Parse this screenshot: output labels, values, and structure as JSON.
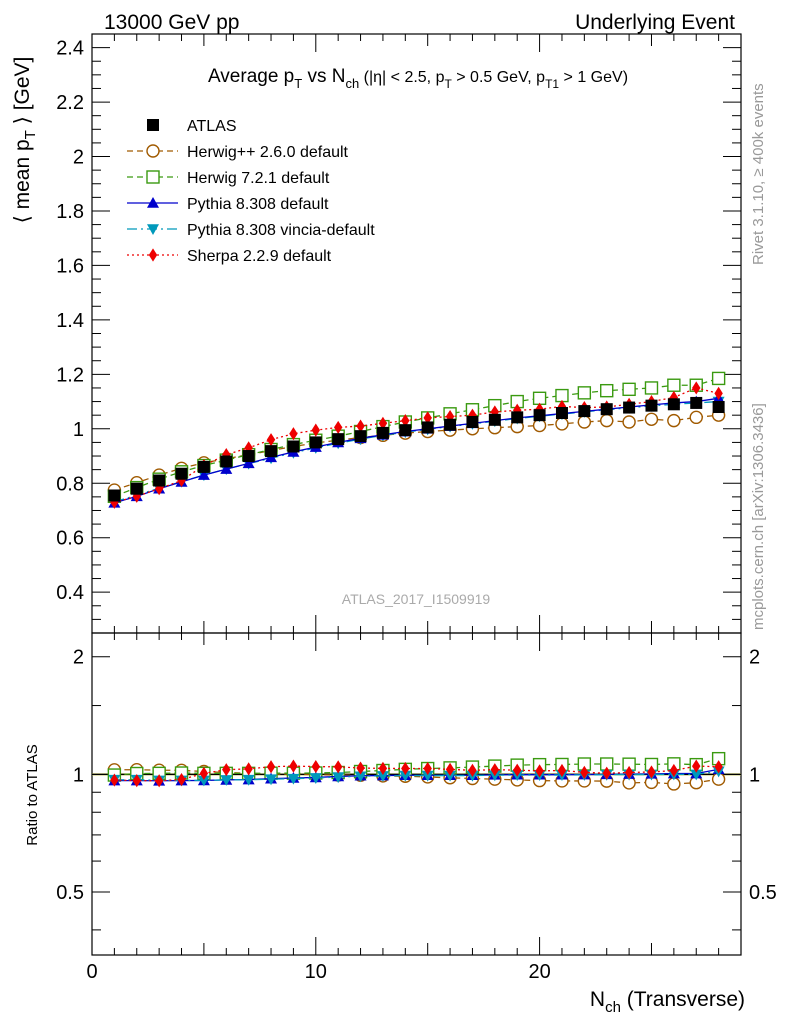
{
  "header": {
    "left": "13000 GeV pp",
    "right": "Underlying Event"
  },
  "side": {
    "rivet": "Rivet 3.1.10, ≥ 400k events",
    "mcplots": "mcplots.cern.ch [arXiv:1306.3436]"
  },
  "watermark": "ATLAS_2017_I1509919",
  "colors": {
    "atlas": "#000000",
    "herwigpp": "#a05a00",
    "herwig7": "#3a9a10",
    "pythia": "#0000cc",
    "vincia": "#0099bb",
    "sherpa": "#ee0000"
  },
  "chart_data": [
    {
      "type": "scatter",
      "title": "Average pT vs Nch (|η| < 2.5, pT > 0.5 GeV, pT1 > 1 GeV)",
      "title_parts": {
        "a": "Average p",
        "a_sub": "T",
        "b": " vs N",
        "b_sub": "ch",
        "c": " (|η| < 2.5, p",
        "c_sub": "T",
        "d": " > 0.5 GeV, p",
        "d_sub": "T1",
        "e": " > 1 GeV)"
      },
      "ylabel": "⟨ mean pT ⟩ [GeV]",
      "ylabel_parts": {
        "a": "⟨ mean p",
        "a_sub": "T",
        "b": " ⟩ [GeV]"
      },
      "xlim": [
        0,
        29
      ],
      "ylim": [
        0.25,
        2.45
      ],
      "y_ticks": [
        0.4,
        0.6,
        0.8,
        1,
        1.2,
        1.4,
        1.6,
        1.8,
        2,
        2.2,
        2.4
      ],
      "y_tick_labels": [
        "0.4",
        "0.6",
        "0.8",
        "1",
        "1.2",
        "1.4",
        "1.6",
        "1.8",
        "2",
        "2.2",
        "2.4"
      ],
      "legend_placement": "top-left",
      "x": [
        1,
        2,
        3,
        4,
        5,
        6,
        7,
        8,
        9,
        10,
        11,
        12,
        13,
        14,
        15,
        16,
        17,
        18,
        19,
        20,
        21,
        22,
        23,
        24,
        25,
        26,
        27,
        28
      ],
      "series": [
        {
          "name": "ATLAS",
          "marker": "square-filled",
          "color": "#000000",
          "values": [
            0.755,
            0.78,
            0.81,
            0.835,
            0.86,
            0.88,
            0.9,
            0.918,
            0.935,
            0.95,
            0.962,
            0.973,
            0.985,
            0.995,
            1.005,
            1.015,
            1.025,
            1.033,
            1.042,
            1.05,
            1.058,
            1.065,
            1.072,
            1.078,
            1.085,
            1.09,
            1.095,
            1.08
          ]
        },
        {
          "name": "Herwig++ 2.6.0 default",
          "marker": "circle-open",
          "color": "#a05a00",
          "values": [
            0.775,
            0.802,
            0.83,
            0.855,
            0.875,
            0.89,
            0.905,
            0.92,
            0.935,
            0.948,
            0.958,
            0.968,
            0.976,
            0.984,
            0.99,
            0.995,
            1.0,
            1.004,
            1.008,
            1.012,
            1.018,
            1.025,
            1.03,
            1.025,
            1.035,
            1.03,
            1.042,
            1.05
          ]
        },
        {
          "name": "Herwig 7.2.1 default",
          "marker": "square-open",
          "color": "#3a9a10",
          "values": [
            0.752,
            0.784,
            0.815,
            0.842,
            0.865,
            0.885,
            0.905,
            0.924,
            0.942,
            0.958,
            0.973,
            0.99,
            1.008,
            1.025,
            1.04,
            1.055,
            1.07,
            1.085,
            1.1,
            1.112,
            1.122,
            1.132,
            1.14,
            1.145,
            1.15,
            1.16,
            1.16,
            1.185
          ]
        },
        {
          "name": "Pythia 8.308 default",
          "marker": "triangle-up-filled",
          "color": "#0000cc",
          "values": [
            0.728,
            0.752,
            0.78,
            0.805,
            0.83,
            0.852,
            0.873,
            0.895,
            0.915,
            0.933,
            0.95,
            0.965,
            0.978,
            0.99,
            1.0,
            1.01,
            1.02,
            1.03,
            1.04,
            1.048,
            1.056,
            1.064,
            1.072,
            1.08,
            1.088,
            1.095,
            1.1,
            1.112
          ]
        },
        {
          "name": "Pythia 8.308 vincia-default",
          "marker": "triangle-down-filled",
          "color": "#0099bb",
          "values": [
            0.732,
            0.756,
            0.782,
            0.806,
            0.83,
            0.852,
            0.872,
            0.892,
            0.912,
            0.93,
            0.947,
            0.962,
            0.976,
            0.988,
            0.998,
            1.008,
            1.018,
            1.028,
            1.038,
            1.046,
            1.054,
            1.062,
            1.07,
            1.077,
            1.084,
            1.09,
            1.095,
            1.1
          ]
        },
        {
          "name": "Sherpa 2.2.9 default",
          "marker": "diamond-filled",
          "color": "#ee0000",
          "values": [
            0.73,
            0.752,
            0.78,
            0.81,
            0.865,
            0.905,
            0.93,
            0.96,
            0.982,
            0.995,
            1.005,
            1.01,
            1.02,
            1.03,
            1.04,
            1.045,
            1.05,
            1.062,
            1.068,
            1.072,
            1.082,
            1.078,
            1.08,
            1.09,
            1.1,
            1.115,
            1.15,
            1.13
          ]
        }
      ]
    },
    {
      "type": "scatter",
      "ylabel": "Ratio to ATLAS",
      "xlabel": "Nch (Transverse)",
      "xlabel_parts": {
        "a": "N",
        "a_sub": "ch",
        "b": " (Transverse)"
      },
      "xlim": [
        0,
        29
      ],
      "ylim": [
        0.345,
        2.3
      ],
      "log_y": true,
      "y_ticks": [
        0.5,
        1,
        2
      ],
      "y_tick_labels": [
        "0.5",
        "1",
        "2"
      ],
      "x_ticks": [
        0,
        10,
        20
      ],
      "x_tick_labels": [
        "0",
        "10",
        "20"
      ],
      "x": [
        1,
        2,
        3,
        4,
        5,
        6,
        7,
        8,
        9,
        10,
        11,
        12,
        13,
        14,
        15,
        16,
        17,
        18,
        19,
        20,
        21,
        22,
        23,
        24,
        25,
        26,
        27,
        28
      ],
      "series": [
        {
          "name": "Herwig++ 2.6.0 default",
          "values": [
            1.027,
            1.028,
            1.025,
            1.024,
            1.017,
            1.011,
            1.006,
            1.002,
            1.0,
            0.998,
            0.996,
            0.995,
            0.991,
            0.989,
            0.985,
            0.98,
            0.976,
            0.972,
            0.968,
            0.964,
            0.962,
            0.962,
            0.961,
            0.951,
            0.954,
            0.945,
            0.952,
            0.972
          ]
        },
        {
          "name": "Herwig 7.2.1 default",
          "values": [
            0.996,
            1.005,
            1.006,
            1.008,
            1.006,
            1.006,
            1.006,
            1.007,
            1.007,
            1.008,
            1.011,
            1.017,
            1.023,
            1.03,
            1.035,
            1.039,
            1.044,
            1.05,
            1.056,
            1.059,
            1.06,
            1.063,
            1.063,
            1.062,
            1.06,
            1.064,
            1.059,
            1.097
          ]
        },
        {
          "name": "Pythia 8.308 default",
          "values": [
            0.964,
            0.964,
            0.963,
            0.964,
            0.965,
            0.968,
            0.97,
            0.975,
            0.979,
            0.982,
            0.988,
            0.992,
            0.993,
            0.995,
            0.995,
            0.995,
            0.995,
            0.997,
            0.998,
            0.998,
            0.998,
            0.999,
            1.0,
            1.002,
            1.003,
            1.005,
            1.005,
            1.03
          ]
        },
        {
          "name": "Pythia 8.308 vincia-default",
          "values": [
            0.969,
            0.969,
            0.965,
            0.965,
            0.965,
            0.968,
            0.969,
            0.972,
            0.975,
            0.979,
            0.984,
            0.989,
            0.991,
            0.993,
            0.993,
            0.993,
            0.993,
            0.995,
            0.996,
            0.996,
            0.996,
            0.997,
            0.998,
            0.999,
            0.999,
            1.0,
            1.0,
            1.018
          ]
        },
        {
          "name": "Sherpa 2.2.9 default",
          "values": [
            0.967,
            0.964,
            0.963,
            0.97,
            1.006,
            1.028,
            1.033,
            1.046,
            1.05,
            1.047,
            1.045,
            1.038,
            1.036,
            1.035,
            1.035,
            1.03,
            1.024,
            1.028,
            1.025,
            1.021,
            1.023,
            1.012,
            1.007,
            1.011,
            1.014,
            1.023,
            1.05,
            1.046
          ]
        }
      ]
    }
  ]
}
